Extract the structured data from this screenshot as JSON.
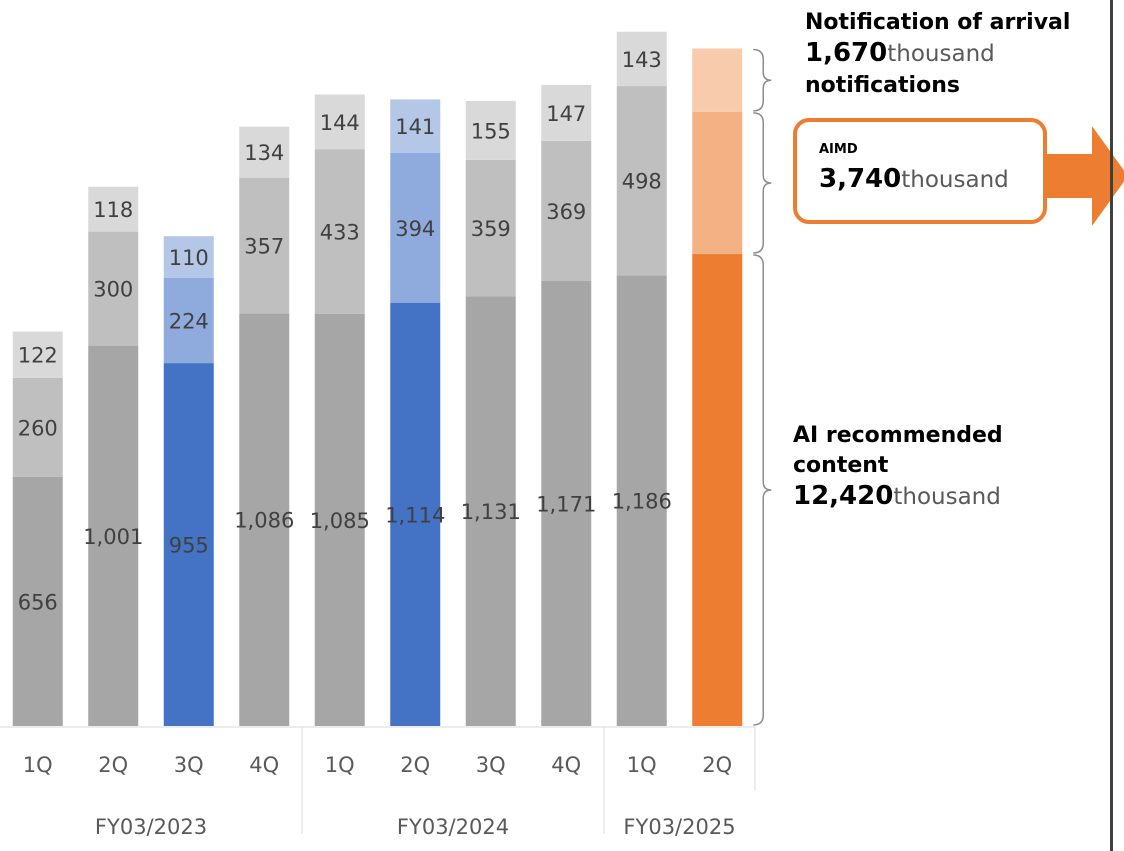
{
  "chart_data": {
    "type": "bar",
    "stacked": true,
    "categories": [
      "1Q",
      "2Q",
      "3Q",
      "4Q",
      "1Q",
      "2Q",
      "3Q",
      "4Q",
      "1Q",
      "2Q"
    ],
    "groups": [
      {
        "label": "FY03/2023",
        "count": 4
      },
      {
        "label": "FY03/2024",
        "count": 4
      },
      {
        "label": "FY03/2025",
        "count": 2
      }
    ],
    "series": [
      {
        "values": [
          656,
          1001,
          955,
          1086,
          1085,
          1114,
          1131,
          1171,
          1186,
          1242
        ]
      },
      {
        "values": [
          260,
          300,
          224,
          357,
          433,
          394,
          359,
          369,
          498,
          374
        ]
      },
      {
        "values": [
          122,
          118,
          110,
          134,
          144,
          141,
          155,
          147,
          143,
          167
        ]
      }
    ],
    "labels": [
      [
        "656",
        "1,001",
        "955",
        "1,086",
        "1,085",
        "1,114",
        "1,131",
        "1,171",
        "1,186",
        ""
      ],
      [
        "260",
        "300",
        "224",
        "357",
        "433",
        "394",
        "359",
        "369",
        "498",
        ""
      ],
      [
        "122",
        "118",
        "110",
        "134",
        "144",
        "141",
        "155",
        "147",
        "143",
        ""
      ]
    ],
    "colors": {
      "gray": [
        "#A6A6A6",
        "#BFBFBF",
        "#D9D9D9"
      ],
      "blue": [
        "#4472C4",
        "#8FAADC",
        "#B4C7E7"
      ],
      "orange": [
        "#ED7D31",
        "#F4B183",
        "#F8CBAD"
      ]
    },
    "highlight": {
      "2": "blue",
      "5": "blue",
      "9": "orange"
    },
    "ylim": [
      0,
      1800
    ],
    "xlabel": "",
    "ylabel": "",
    "title": "",
    "annotations": {
      "notification": {
        "line1": "Notification of arrival",
        "value": "1,670",
        "unit": "thousand",
        "line3": "notifications"
      },
      "aimd": {
        "label": "AIMD",
        "value": "3,740",
        "unit": "thousand"
      },
      "ai_recommended": {
        "line1": "AI recommended",
        "line2": "content",
        "value": "12,420",
        "unit": "thousand"
      }
    },
    "arrow_color": "#ED7D31"
  }
}
